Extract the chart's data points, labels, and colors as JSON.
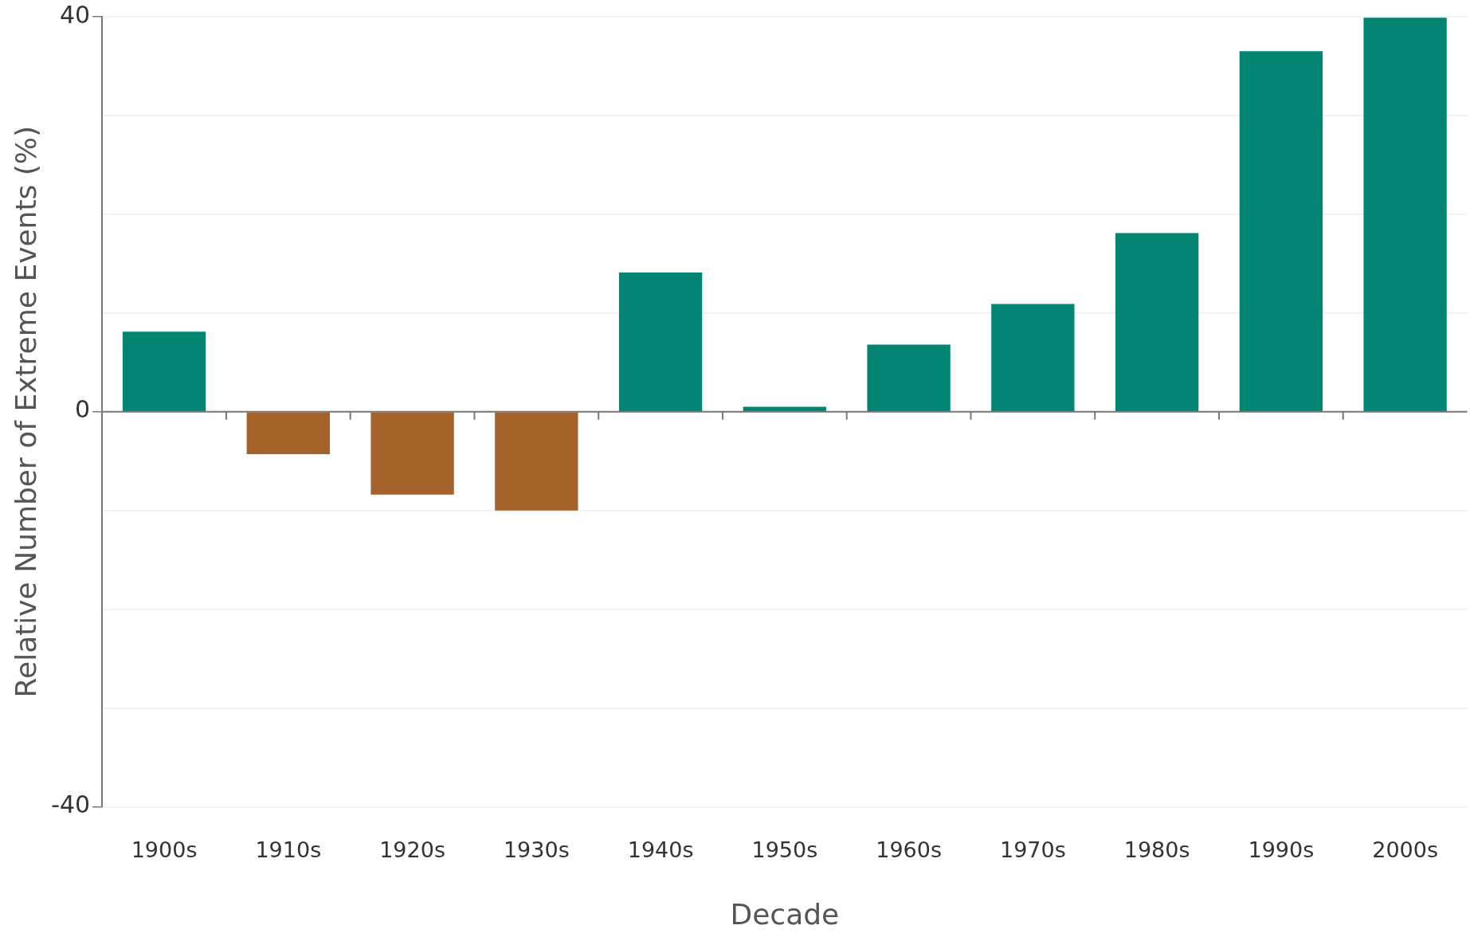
{
  "chart_data": {
    "type": "bar",
    "xlabel": "Decade",
    "ylabel": "Relative Number of Extreme Events (%)",
    "categories": [
      "1900s",
      "1910s",
      "1920s",
      "1930s",
      "1940s",
      "1950s",
      "1960s",
      "1970s",
      "1980s",
      "1990s",
      "2000s"
    ],
    "values": [
      8.1,
      -4.3,
      -8.4,
      -10,
      14.1,
      0.5,
      6.8,
      10.9,
      18.1,
      36.5,
      39.9
    ],
    "colors": [
      "#048573",
      "#a5622a",
      "#a5622a",
      "#a5622a",
      "#048573",
      "#048573",
      "#048573",
      "#048573",
      "#048573",
      "#048573",
      "#048573"
    ],
    "ylim": [
      -40,
      40
    ],
    "yticks": [
      -40,
      {
        "value": -30,
        "label": null
      },
      {
        "value": -20,
        "label": null
      },
      {
        "value": -10,
        "label": null
      },
      0,
      {
        "value": 10,
        "label": null
      },
      {
        "value": 20,
        "label": null
      },
      {
        "value": 30,
        "label": null
      },
      40
    ],
    "grid": "y",
    "legend": false
  }
}
